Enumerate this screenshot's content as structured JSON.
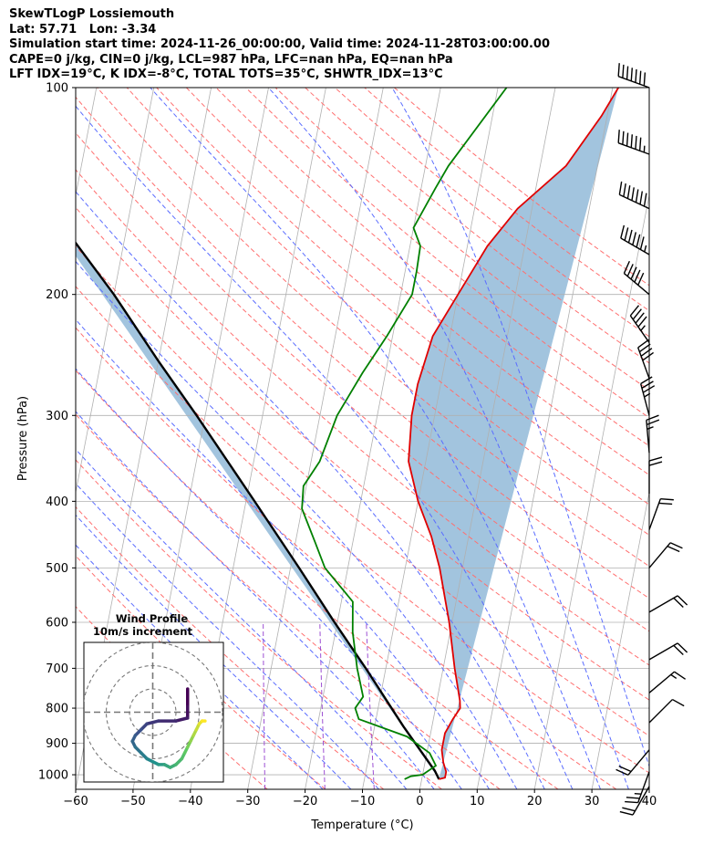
{
  "header": {
    "line1": "SkewTLogP Lossiemouth",
    "line2": "Lat: 57.71   Lon: -3.34",
    "line3": "Simulation start time: 2024-11-26_00:00:00, Valid time: 2024-11-28T03:00:00.00",
    "line4": "CAPE=0 j/kg, CIN=0 j/kg, LCL=987 hPa, LFC=nan hPa, EQ=nan hPa",
    "line5": "LFT IDX=19°C, K IDX=-8°C, TOTAL TOTS=35°C, SHWTR_IDX=13°C"
  },
  "chart_data": {
    "type": "line",
    "subtype": "skew-T log-P diagram",
    "xlabel": "Temperature (°C)",
    "ylabel": "Pressure (hPa)",
    "x_ticks": [
      "−60",
      "−50",
      "−40",
      "−30",
      "−20",
      "−10",
      "0",
      "10",
      "20",
      "30",
      "40"
    ],
    "x_tick_values": [
      -60,
      -50,
      -40,
      -30,
      -20,
      -10,
      0,
      10,
      20,
      30,
      40
    ],
    "y_ticks": [
      "100",
      "200",
      "300",
      "400",
      "500",
      "600",
      "700",
      "800",
      "900",
      "1000"
    ],
    "y_tick_values": [
      100,
      200,
      300,
      400,
      500,
      600,
      700,
      800,
      900,
      1000
    ],
    "xlim": [
      -60,
      40
    ],
    "ylim": [
      1050,
      100
    ],
    "y_scale": "log",
    "grid": true,
    "colors": {
      "temperature": "#e00000",
      "dewpoint": "#008000",
      "parcel": "#000000",
      "cape_fill": "#a2c4de",
      "dry_adiabat": "#ff6f6f",
      "moist_adiabat": "#5a6cff",
      "mixing_ratio": "#9d4fd3",
      "isotherm": "#b0b0b0"
    },
    "series": [
      {
        "name": "temperature",
        "points": [
          [
            100,
            11
          ],
          [
            110,
            9
          ],
          [
            130,
            4.5
          ],
          [
            150,
            -2.5
          ],
          [
            170,
            -6.5
          ],
          [
            200,
            -10
          ],
          [
            230,
            -13
          ],
          [
            270,
            -14
          ],
          [
            300,
            -14
          ],
          [
            350,
            -13
          ],
          [
            400,
            -10
          ],
          [
            450,
            -6.5
          ],
          [
            500,
            -4
          ],
          [
            600,
            -0.5
          ],
          [
            700,
            2
          ],
          [
            780,
            4
          ],
          [
            800,
            4.3
          ],
          [
            830,
            3.4
          ],
          [
            870,
            2.5
          ],
          [
            920,
            2.5
          ],
          [
            960,
            3.2
          ],
          [
            990,
            4
          ],
          [
            1010,
            4
          ],
          [
            1015,
            3
          ]
        ]
      },
      {
        "name": "dewpoint",
        "points": [
          [
            100,
            -8.5
          ],
          [
            130,
            -16
          ],
          [
            140,
            -17.5
          ],
          [
            160,
            -20
          ],
          [
            170,
            -18.2
          ],
          [
            185,
            -18
          ],
          [
            200,
            -18
          ],
          [
            230,
            -21
          ],
          [
            260,
            -24
          ],
          [
            300,
            -27
          ],
          [
            350,
            -28.5
          ],
          [
            380,
            -30.5
          ],
          [
            410,
            -30
          ],
          [
            460,
            -26.5
          ],
          [
            500,
            -24
          ],
          [
            560,
            -18
          ],
          [
            620,
            -17
          ],
          [
            700,
            -15
          ],
          [
            770,
            -13
          ],
          [
            800,
            -14
          ],
          [
            830,
            -13
          ],
          [
            880,
            -4
          ],
          [
            930,
            0.5
          ],
          [
            970,
            2
          ],
          [
            1000,
            0
          ],
          [
            1005,
            -2
          ],
          [
            1015,
            -3
          ]
        ]
      },
      {
        "name": "parcel",
        "points": [
          [
            1015,
            3
          ],
          [
            987,
            2
          ],
          [
            850,
            -5
          ],
          [
            700,
            -13.5
          ],
          [
            600,
            -20.5
          ],
          [
            500,
            -28.5
          ],
          [
            400,
            -38.5
          ],
          [
            300,
            -51.5
          ],
          [
            250,
            -60
          ],
          [
            200,
            -70
          ],
          [
            150,
            -84
          ],
          [
            100,
            -104
          ]
        ]
      }
    ],
    "wind_barbs": [
      {
        "p": 100,
        "dir": 290,
        "speed": 70
      },
      {
        "p": 125,
        "dir": 290,
        "speed": 65
      },
      {
        "p": 150,
        "dir": 295,
        "speed": 70
      },
      {
        "p": 175,
        "dir": 300,
        "speed": 65
      },
      {
        "p": 200,
        "dir": 310,
        "speed": 50
      },
      {
        "p": 235,
        "dir": 325,
        "speed": 45
      },
      {
        "p": 265,
        "dir": 340,
        "speed": 40
      },
      {
        "p": 300,
        "dir": 345,
        "speed": 35
      },
      {
        "p": 340,
        "dir": 355,
        "speed": 25
      },
      {
        "p": 390,
        "dir": 0,
        "speed": 20
      },
      {
        "p": 440,
        "dir": 20,
        "speed": 20
      },
      {
        "p": 500,
        "dir": 40,
        "speed": 20
      },
      {
        "p": 580,
        "dir": 60,
        "speed": 20
      },
      {
        "p": 680,
        "dir": 60,
        "speed": 20
      },
      {
        "p": 760,
        "dir": 50,
        "speed": 15
      },
      {
        "p": 840,
        "dir": 45,
        "speed": 10
      },
      {
        "p": 920,
        "dir": 220,
        "speed": 20
      },
      {
        "p": 990,
        "dir": 200,
        "speed": 25
      },
      {
        "p": 1040,
        "dir": 210,
        "speed": 20
      }
    ],
    "inset": {
      "title": "Wind Profile",
      "subtitle": "10m/s increment",
      "ring_step_mps": 10,
      "hodograph_uv": [
        [
          6,
          4
        ],
        [
          6,
          1
        ],
        [
          6,
          -1
        ],
        [
          4,
          -1.5
        ],
        [
          1,
          -1.5
        ],
        [
          -1,
          -2
        ],
        [
          -2,
          -3
        ],
        [
          -3,
          -4
        ],
        [
          -3.5,
          -5
        ],
        [
          -3,
          -6
        ],
        [
          -2,
          -7
        ],
        [
          -1,
          -8
        ],
        [
          0,
          -8.5
        ],
        [
          1,
          -9
        ],
        [
          2,
          -9
        ],
        [
          3,
          -9.5
        ],
        [
          4,
          -9
        ],
        [
          5,
          -8
        ],
        [
          5.5,
          -7
        ],
        [
          6,
          -6
        ],
        [
          6.5,
          -5
        ],
        [
          7,
          -4
        ],
        [
          7.5,
          -3
        ],
        [
          8,
          -2
        ],
        [
          8.5,
          -1.5
        ],
        [
          9,
          -1.5
        ]
      ]
    }
  }
}
